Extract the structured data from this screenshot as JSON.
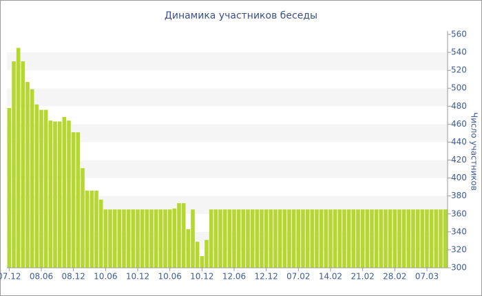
{
  "chart_data": {
    "type": "bar",
    "title": "Динамика участников беседы",
    "y_label": "Число участников",
    "categories": [
      "07.12",
      null,
      null,
      null,
      null,
      null,
      null,
      "08.06",
      null,
      null,
      null,
      null,
      null,
      null,
      "08.12",
      null,
      null,
      null,
      null,
      null,
      null,
      "10.06",
      null,
      null,
      null,
      null,
      null,
      null,
      "10.12",
      null,
      null,
      null,
      null,
      null,
      null,
      "10.06",
      null,
      null,
      null,
      null,
      null,
      null,
      "10.12",
      null,
      null,
      null,
      null,
      null,
      null,
      "12.06",
      null,
      null,
      null,
      null,
      null,
      null,
      "12.12",
      null,
      null,
      null,
      null,
      null,
      null,
      "07.02",
      null,
      null,
      null,
      null,
      null,
      null,
      "14.02",
      null,
      null,
      null,
      null,
      null,
      null,
      "21.02",
      null,
      null,
      null,
      null,
      null,
      null,
      "28.02",
      null,
      null,
      null,
      null,
      null,
      null,
      "07.03",
      null,
      null,
      null,
      null
    ],
    "values": [
      478,
      530,
      545,
      530,
      507,
      499,
      482,
      476,
      476,
      464,
      463,
      463,
      468,
      464,
      451,
      451,
      411,
      386,
      386,
      386,
      376,
      365,
      365,
      365,
      365,
      365,
      365,
      365,
      365,
      365,
      365,
      365,
      365,
      365,
      365,
      365,
      366,
      372,
      372,
      343,
      365,
      329,
      313,
      331,
      365,
      365,
      365,
      365,
      365,
      365,
      365,
      365,
      365,
      365,
      365,
      365,
      365,
      365,
      365,
      365,
      365,
      365,
      365,
      365,
      365,
      365,
      365,
      365,
      365,
      365,
      365,
      365,
      365,
      365,
      365,
      365,
      365,
      365,
      365,
      365,
      365,
      365,
      365,
      365,
      365,
      365,
      365,
      365,
      365,
      365,
      365,
      365,
      365,
      365,
      365,
      365
    ],
    "color": "#b5d82e",
    "ylim": [
      300,
      560
    ],
    "yticks": [
      300,
      320,
      340,
      360,
      380,
      400,
      420,
      440,
      460,
      480,
      500,
      520,
      540,
      560
    ],
    "grid": "bands",
    "y_axis_side": "right"
  }
}
